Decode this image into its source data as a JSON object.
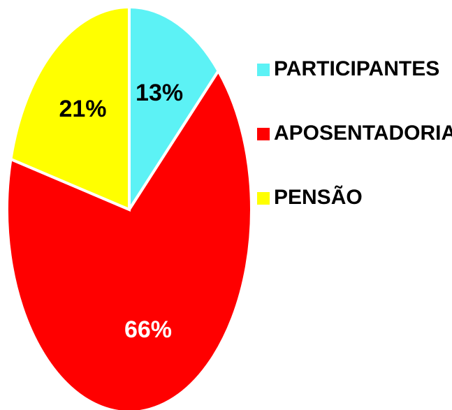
{
  "chart_data": {
    "type": "pie",
    "categories": [
      "PARTICIPANTES",
      "APOSENTADORIAS",
      "PENSÃO"
    ],
    "values": [
      13,
      66,
      21
    ],
    "value_labels": [
      "13%",
      "66%",
      "21%"
    ],
    "colors": [
      "#5cf2f5",
      "#ff0000",
      "#ffff00"
    ],
    "label_colors": [
      "#000000",
      "#ffffff",
      "#000000"
    ],
    "legend": "right"
  }
}
